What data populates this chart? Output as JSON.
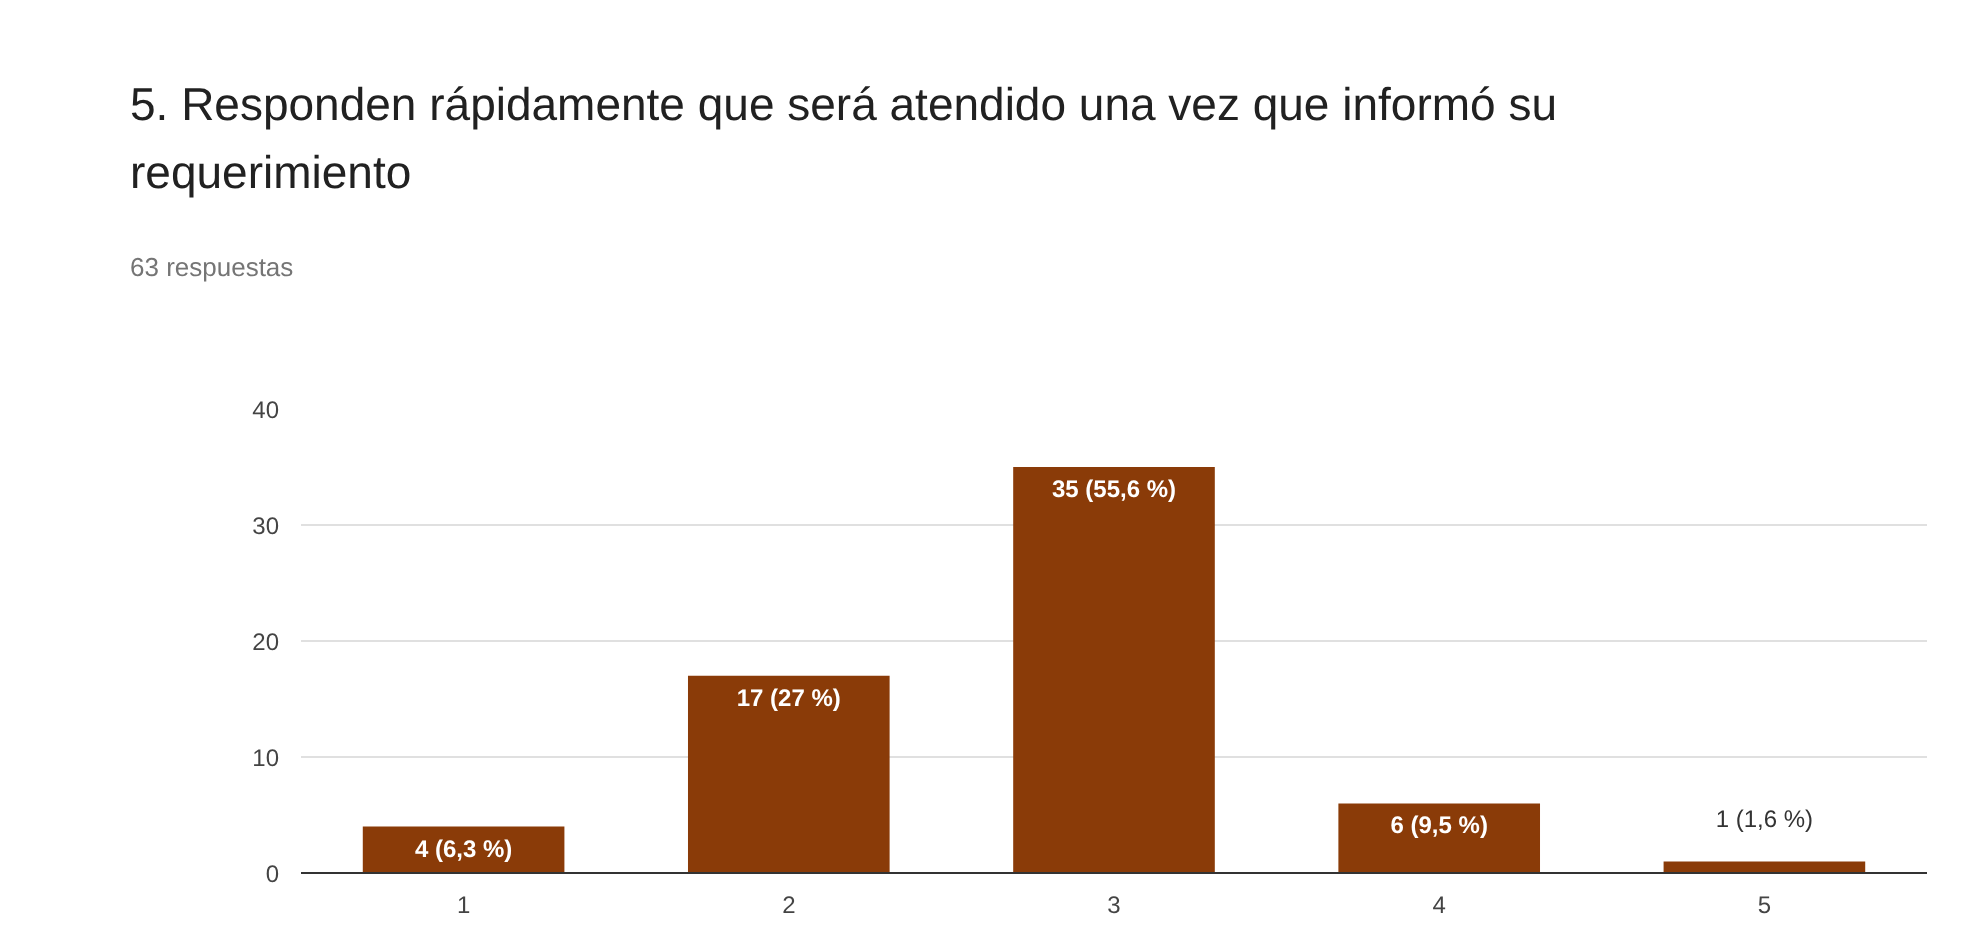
{
  "chart_data": {
    "type": "bar",
    "title": "5. Responden rápidamente que será atendido una vez que informó su requerimiento",
    "subtitle": "63 respuestas",
    "categories": [
      "1",
      "2",
      "3",
      "4",
      "5"
    ],
    "values": [
      4,
      17,
      35,
      6,
      1
    ],
    "value_labels": [
      "4 (6,3 %)",
      "17 (27 %)",
      "35 (55,6 %)",
      "6 (9,5 %)",
      "1 (1,6 %)"
    ],
    "color": "#8a3b08",
    "ylim": [
      0,
      40
    ],
    "yticks": [
      0,
      10,
      20,
      30,
      40
    ],
    "grid": "y"
  }
}
